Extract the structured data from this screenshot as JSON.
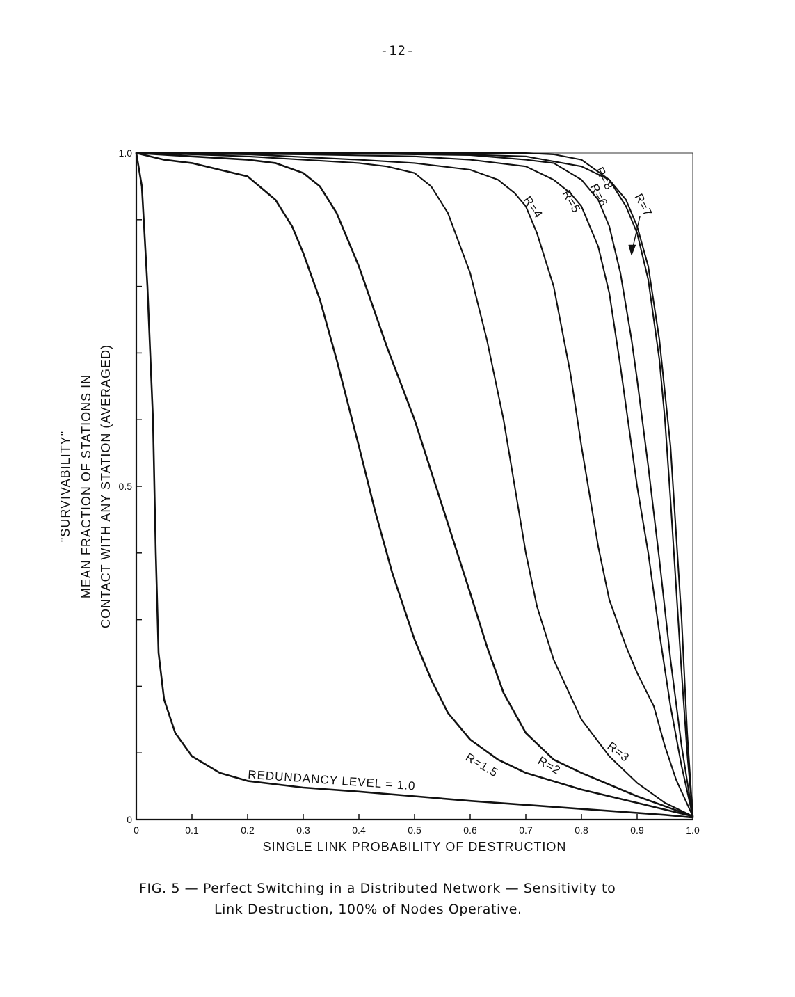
{
  "page": {
    "number": "-12-"
  },
  "caption": {
    "line1": "FIG. 5 — Perfect Switching in a Distributed Network — Sensitivity to",
    "line2": "Link Destruction, 100% of Nodes Operative."
  },
  "chart_data": {
    "type": "line",
    "title": "",
    "xlabel": "SINGLE LINK PROBABILITY OF DESTRUCTION",
    "ylabel_lines": [
      "\"SURVIVABILITY\"",
      "MEAN FRACTION OF STATIONS IN",
      "CONTACT WITH ANY STATION (AVERAGED)"
    ],
    "xlim": [
      0,
      1.0
    ],
    "ylim": [
      0,
      1.0
    ],
    "x_ticks": [
      {
        "value": 0,
        "label": "0"
      },
      {
        "value": 0.1,
        "label": "0.1"
      },
      {
        "value": 0.2,
        "label": "0.2"
      },
      {
        "value": 0.3,
        "label": "0.3"
      },
      {
        "value": 0.4,
        "label": "0.4"
      },
      {
        "value": 0.5,
        "label": "0.5"
      },
      {
        "value": 0.6,
        "label": "0.6"
      },
      {
        "value": 0.7,
        "label": "0.7"
      },
      {
        "value": 0.8,
        "label": "0.8"
      },
      {
        "value": 0.9,
        "label": "0.9"
      },
      {
        "value": 1.0,
        "label": "1.0"
      }
    ],
    "y_ticks": [
      {
        "value": 0,
        "label": "0"
      },
      {
        "value": 0.1,
        "label": ""
      },
      {
        "value": 0.2,
        "label": ""
      },
      {
        "value": 0.3,
        "label": ""
      },
      {
        "value": 0.4,
        "label": ""
      },
      {
        "value": 0.5,
        "label": "0.5"
      },
      {
        "value": 0.6,
        "label": ""
      },
      {
        "value": 0.7,
        "label": ""
      },
      {
        "value": 0.8,
        "label": ""
      },
      {
        "value": 0.9,
        "label": ""
      },
      {
        "value": 1.0,
        "label": "1.0"
      }
    ],
    "series": [
      {
        "name": "REDUNDANCY LEVEL = 1.0",
        "x": [
          0,
          0.01,
          0.02,
          0.03,
          0.035,
          0.04,
          0.05,
          0.07,
          0.1,
          0.15,
          0.2,
          0.3,
          0.4,
          0.5,
          0.6,
          0.7,
          0.8,
          0.9,
          0.95,
          1.0
        ],
        "y": [
          1.0,
          0.95,
          0.8,
          0.6,
          0.4,
          0.25,
          0.18,
          0.13,
          0.095,
          0.07,
          0.058,
          0.048,
          0.042,
          0.035,
          0.028,
          0.022,
          0.016,
          0.01,
          0.007,
          0.003
        ]
      },
      {
        "name": "R=1.5",
        "x": [
          0,
          0.05,
          0.1,
          0.15,
          0.2,
          0.25,
          0.28,
          0.3,
          0.33,
          0.36,
          0.4,
          0.43,
          0.46,
          0.5,
          0.53,
          0.56,
          0.6,
          0.65,
          0.7,
          0.8,
          0.9,
          0.95,
          1.0
        ],
        "y": [
          1.0,
          0.99,
          0.985,
          0.975,
          0.965,
          0.93,
          0.89,
          0.85,
          0.78,
          0.69,
          0.56,
          0.46,
          0.37,
          0.27,
          0.21,
          0.16,
          0.12,
          0.09,
          0.07,
          0.045,
          0.025,
          0.015,
          0.005
        ]
      },
      {
        "name": "R=2",
        "x": [
          0,
          0.1,
          0.2,
          0.25,
          0.3,
          0.33,
          0.36,
          0.4,
          0.45,
          0.5,
          0.55,
          0.6,
          0.63,
          0.66,
          0.7,
          0.75,
          0.8,
          0.9,
          0.95,
          1.0
        ],
        "y": [
          1.0,
          0.995,
          0.99,
          0.985,
          0.97,
          0.95,
          0.91,
          0.83,
          0.71,
          0.6,
          0.47,
          0.34,
          0.26,
          0.19,
          0.13,
          0.09,
          0.07,
          0.035,
          0.02,
          0.005
        ]
      },
      {
        "name": "R=3",
        "x": [
          0,
          0.1,
          0.2,
          0.3,
          0.4,
          0.45,
          0.5,
          0.53,
          0.56,
          0.6,
          0.63,
          0.66,
          0.68,
          0.7,
          0.72,
          0.75,
          0.8,
          0.85,
          0.9,
          0.95,
          1.0
        ],
        "y": [
          1.0,
          0.998,
          0.995,
          0.99,
          0.985,
          0.98,
          0.97,
          0.95,
          0.91,
          0.82,
          0.72,
          0.6,
          0.5,
          0.4,
          0.32,
          0.24,
          0.15,
          0.095,
          0.055,
          0.025,
          0.005
        ]
      },
      {
        "name": "R=4",
        "x": [
          0,
          0.2,
          0.4,
          0.5,
          0.6,
          0.65,
          0.68,
          0.7,
          0.72,
          0.75,
          0.78,
          0.8,
          0.83,
          0.85,
          0.88,
          0.9,
          0.93,
          0.95,
          0.97,
          1.0
        ],
        "y": [
          1.0,
          0.998,
          0.99,
          0.985,
          0.975,
          0.96,
          0.94,
          0.92,
          0.88,
          0.8,
          0.67,
          0.56,
          0.41,
          0.33,
          0.26,
          0.22,
          0.17,
          0.11,
          0.06,
          0.005
        ]
      },
      {
        "name": "R=5",
        "x": [
          0,
          0.3,
          0.5,
          0.6,
          0.7,
          0.75,
          0.78,
          0.8,
          0.83,
          0.85,
          0.87,
          0.89,
          0.9,
          0.92,
          0.94,
          0.96,
          0.98,
          1.0
        ],
        "y": [
          1.0,
          0.998,
          0.995,
          0.99,
          0.98,
          0.96,
          0.94,
          0.92,
          0.86,
          0.79,
          0.68,
          0.56,
          0.5,
          0.4,
          0.28,
          0.17,
          0.08,
          0.005
        ]
      },
      {
        "name": "R=6",
        "x": [
          0,
          0.4,
          0.6,
          0.7,
          0.75,
          0.8,
          0.83,
          0.85,
          0.87,
          0.89,
          0.9,
          0.92,
          0.94,
          0.96,
          0.98,
          1.0
        ],
        "y": [
          1.0,
          0.999,
          0.997,
          0.99,
          0.985,
          0.96,
          0.93,
          0.89,
          0.82,
          0.72,
          0.66,
          0.53,
          0.39,
          0.24,
          0.11,
          0.005
        ]
      },
      {
        "name": "R=7",
        "x": [
          0,
          0.5,
          0.7,
          0.8,
          0.85,
          0.88,
          0.9,
          0.92,
          0.94,
          0.95,
          0.96,
          0.97,
          0.98,
          0.99,
          1.0
        ],
        "y": [
          1.0,
          1.0,
          0.995,
          0.98,
          0.96,
          0.92,
          0.88,
          0.81,
          0.69,
          0.6,
          0.48,
          0.35,
          0.22,
          0.1,
          0.005
        ]
      },
      {
        "name": "R=8",
        "x": [
          0,
          0.5,
          0.7,
          0.75,
          0.8,
          0.85,
          0.88,
          0.9,
          0.92,
          0.94,
          0.96,
          0.97,
          0.98,
          0.99,
          1.0
        ],
        "y": [
          1.0,
          1.0,
          1.0,
          0.998,
          0.99,
          0.96,
          0.93,
          0.89,
          0.83,
          0.72,
          0.56,
          0.43,
          0.3,
          0.13,
          0.005
        ]
      }
    ]
  }
}
